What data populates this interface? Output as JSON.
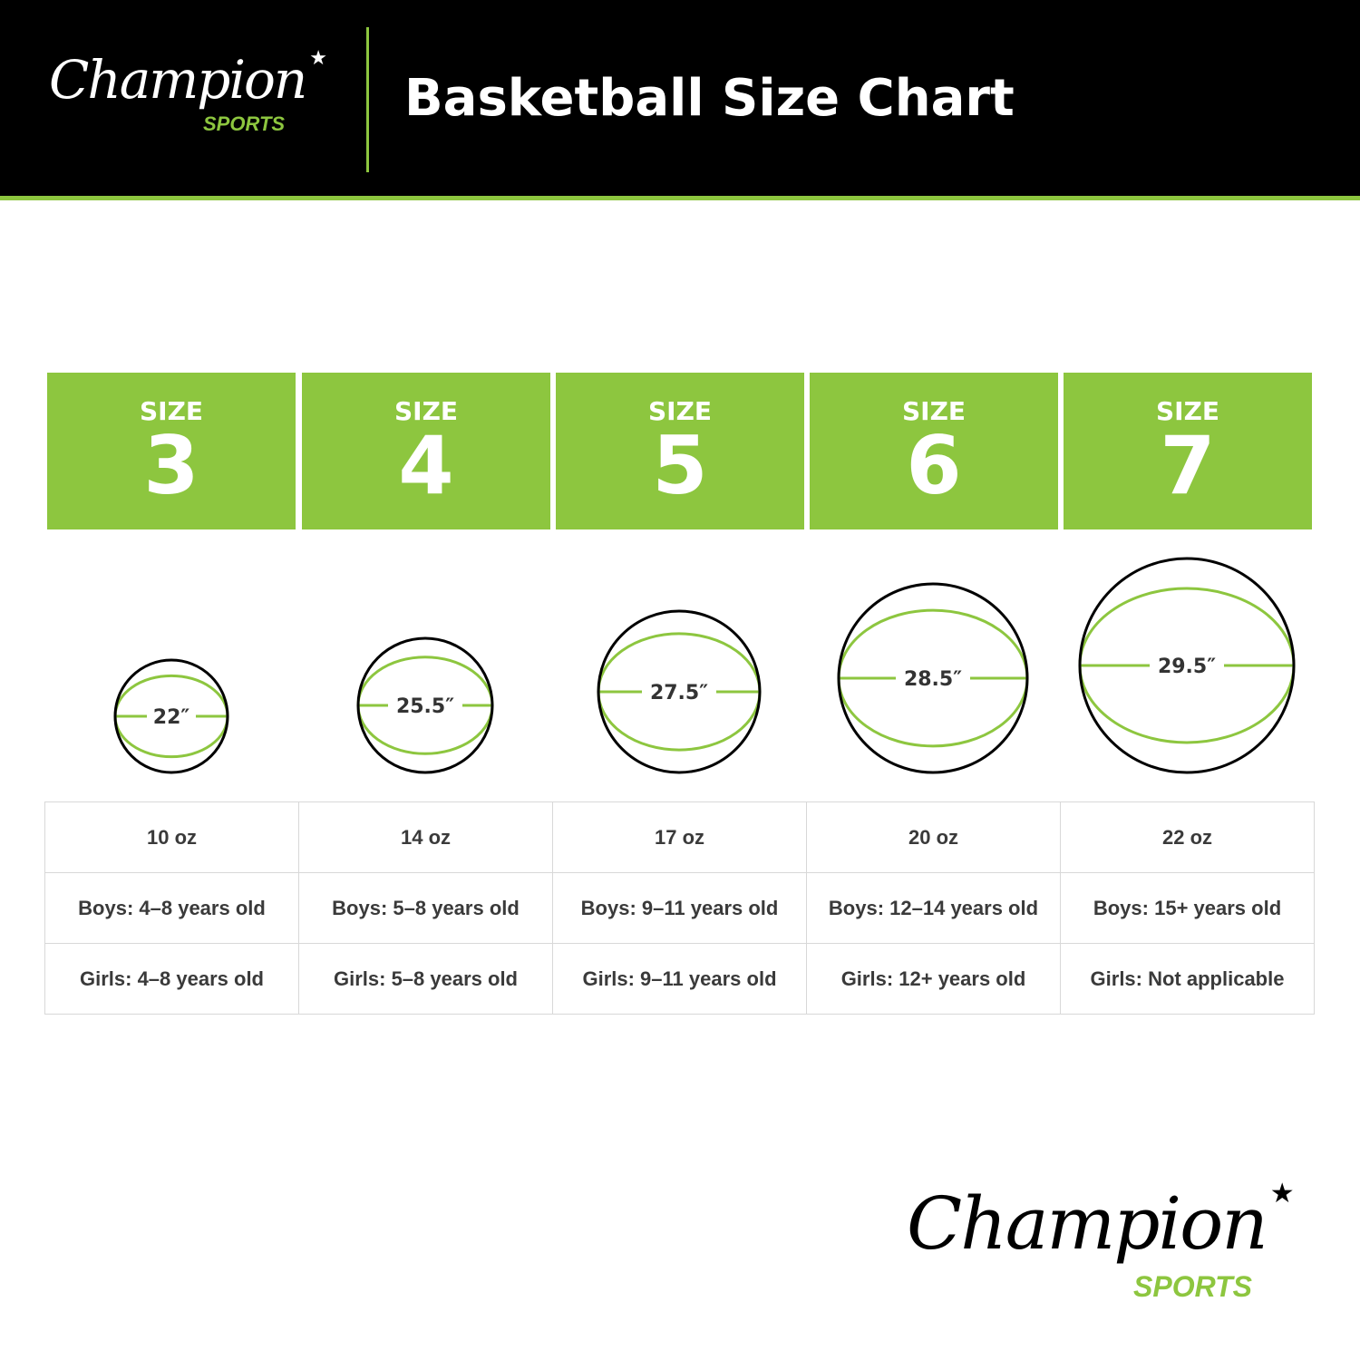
{
  "header": {
    "title": "Basketball Size Chart",
    "logo": {
      "script": "Champion",
      "sub": "SPORTS"
    }
  },
  "colors": {
    "accent": "#8dc63f",
    "header_bg": "#000000",
    "outline": "#000000"
  },
  "sizes": [
    {
      "label": "SIZE",
      "number": "3",
      "circumference": "22″",
      "circumference_in": 22,
      "weight": "10 oz",
      "boys": "Boys: 4–8 years old",
      "girls": "Girls: 4–8 years old"
    },
    {
      "label": "SIZE",
      "number": "4",
      "circumference": "25.5″",
      "circumference_in": 25.5,
      "weight": "14 oz",
      "boys": "Boys: 5–8 years old",
      "girls": "Girls: 5–8 years old"
    },
    {
      "label": "SIZE",
      "number": "5",
      "circumference": "27.5″",
      "circumference_in": 27.5,
      "weight": "17 oz",
      "boys": "Boys: 9–11 years old",
      "girls": "Girls: 9–11 years old"
    },
    {
      "label": "SIZE",
      "number": "6",
      "circumference": "28.5″",
      "circumference_in": 28.5,
      "weight": "20 oz",
      "boys": "Boys: 12–14 years old",
      "girls": "Girls: 12+ years old"
    },
    {
      "label": "SIZE",
      "number": "7",
      "circumference": "29.5″",
      "circumference_in": 29.5,
      "weight": "22 oz",
      "boys": "Boys: 15+ years old",
      "girls": "Girls: Not applicable"
    }
  ],
  "footer_logo": {
    "script": "Champion",
    "sub": "SPORTS"
  }
}
